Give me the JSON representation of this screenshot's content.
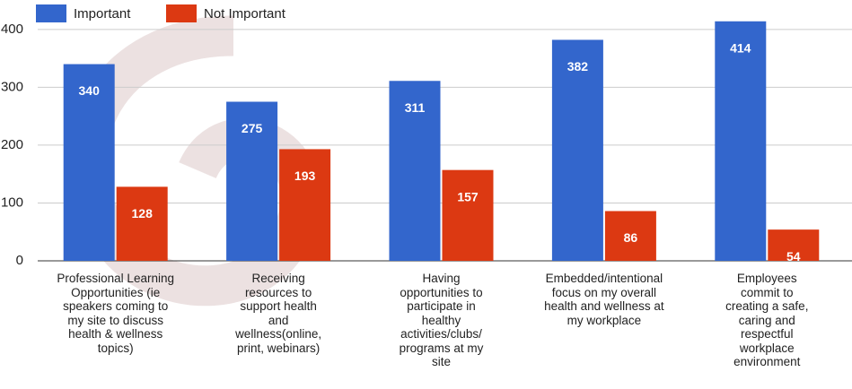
{
  "chart_data": {
    "type": "bar",
    "categories": [
      "Professional Learning\nOpportunities (ie\nspeakers coming to\nmy site to discuss\nhealth & wellness\ntopics)",
      "Receiving\nresources to\nsupport health\nand\nwellness(online,\nprint, webinars)",
      "Having\nopportunities to\nparticipate in\nhealthy\nactivities/clubs/\nprograms at my\nsite",
      "Embedded/intentional\nfocus on my overall\nhealth and wellness at\nmy workplace",
      "Employees\ncommit to\ncreating a safe,\ncaring and\nrespectful\nworkplace\nenvironment"
    ],
    "series": [
      {
        "name": "Important",
        "color": "#3366cc",
        "values": [
          340,
          275,
          311,
          382,
          414
        ]
      },
      {
        "name": "Not Important",
        "color": "#dc3912",
        "values": [
          128,
          193,
          157,
          86,
          54
        ]
      }
    ],
    "ylim": [
      0,
      440
    ],
    "yticks": [
      0,
      100,
      200,
      300,
      400
    ],
    "grid": true,
    "legend": "top"
  }
}
